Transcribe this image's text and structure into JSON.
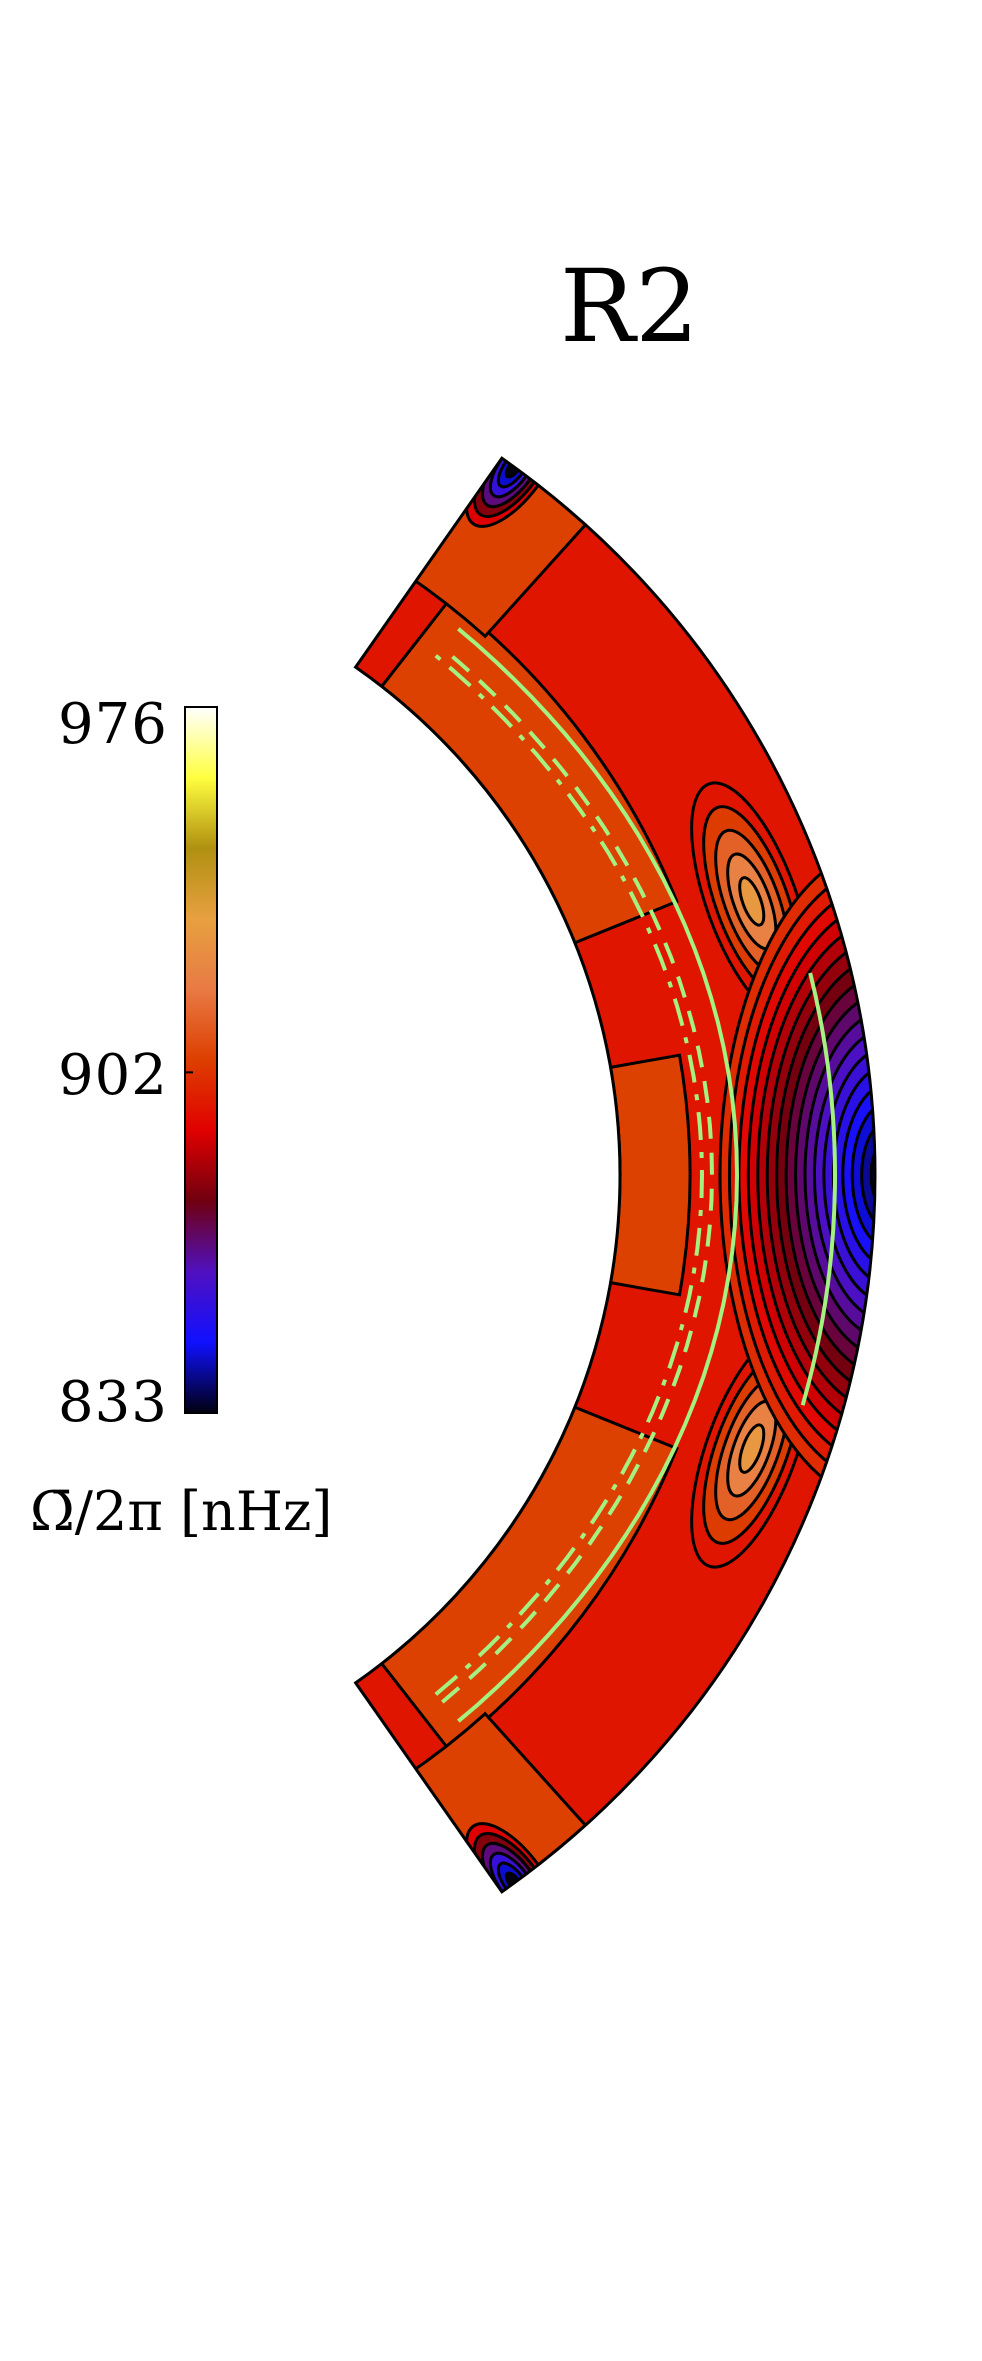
{
  "chart_data": {
    "type": "heatmap",
    "subtype": "meridional-plane contour map (spherical shell, r-theta)",
    "panel_label": "R2",
    "colorbar": {
      "label": "Ω̄/2π [nHz]",
      "ticks": [
        976,
        902,
        833
      ],
      "min": 833,
      "max": 976,
      "colormap": [
        "#000010",
        "#1010ff",
        "#5010c0",
        "#700010",
        "#e00000",
        "#dd3f00",
        "#e87a44",
        "#e8a040",
        "#b09010",
        "#ffff40",
        "#ffffff"
      ]
    },
    "regions": [
      {
        "name": "background",
        "value": 895
      },
      {
        "name": "mid-latitude-band",
        "value": 905
      },
      {
        "name": "high-latitude-cap",
        "value": 905
      },
      {
        "name": "mid-latitude-maxima",
        "value": 930
      },
      {
        "name": "equatorial-minimum",
        "value": 833
      }
    ],
    "overlay_lines": [
      {
        "style": "solid",
        "color": "#a4f080"
      },
      {
        "style": "dashed",
        "color": "#a4f080"
      },
      {
        "style": "dashdot",
        "color": "#a4f080"
      }
    ]
  }
}
